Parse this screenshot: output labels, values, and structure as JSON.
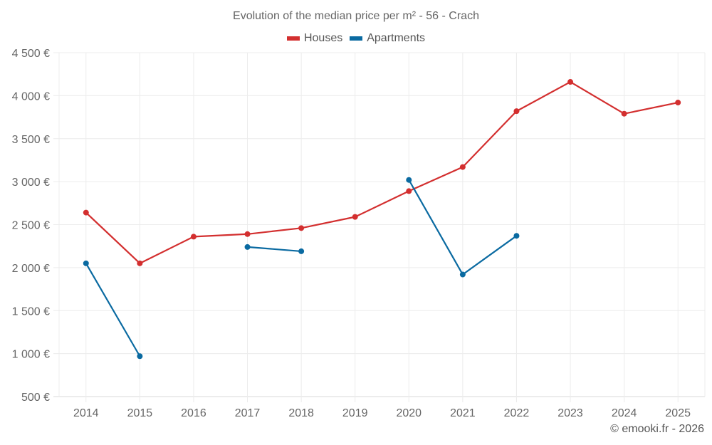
{
  "chart_data": {
    "type": "line",
    "title": "Evolution of the median price per m² - 56 - Crach",
    "xlabel": "",
    "ylabel": "",
    "categories": [
      "2014",
      "2015",
      "2016",
      "2017",
      "2018",
      "2019",
      "2020",
      "2021",
      "2022",
      "2023",
      "2024",
      "2025"
    ],
    "ylim": [
      500,
      4500
    ],
    "yticks": [
      500,
      1000,
      1500,
      2000,
      2500,
      3000,
      3500,
      4000,
      4500
    ],
    "ytick_labels": [
      "500 €",
      "1 000 €",
      "1 500 €",
      "2 000 €",
      "2 500 €",
      "3 000 €",
      "3 500 €",
      "4 000 €",
      "4 500 €"
    ],
    "grid": true,
    "legend_position": "top-center",
    "series": [
      {
        "name": "Houses",
        "color": "#d32f2f",
        "values": [
          2640,
          2050,
          2360,
          2390,
          2460,
          2590,
          2890,
          3170,
          3820,
          4160,
          3790,
          3920
        ]
      },
      {
        "name": "Apartments",
        "color": "#0a6aa1",
        "values": [
          2050,
          970,
          null,
          2240,
          2190,
          null,
          3020,
          1920,
          2370,
          null,
          null,
          null
        ]
      }
    ]
  },
  "credit": "© emooki.fr - 2026"
}
